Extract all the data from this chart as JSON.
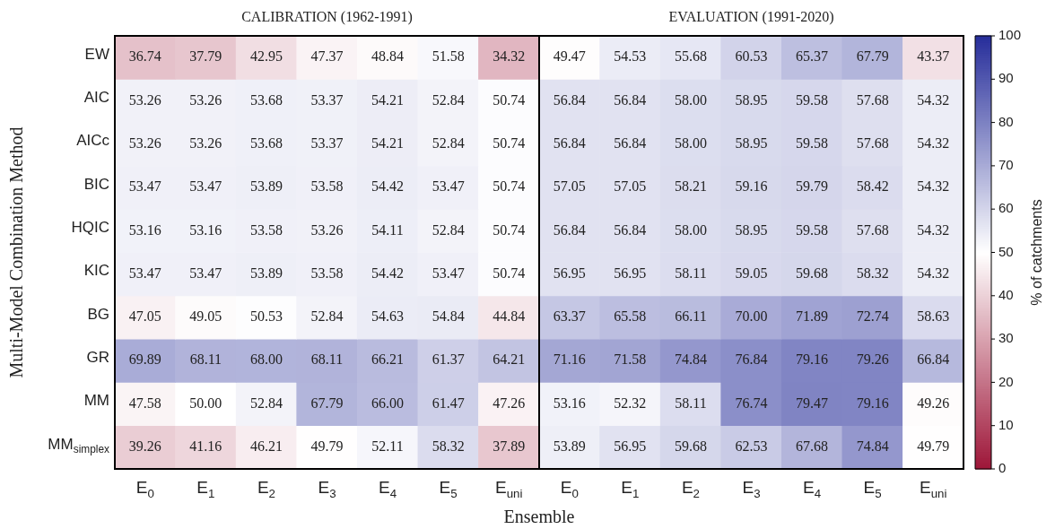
{
  "chart_data": {
    "type": "heatmap",
    "annotations": [
      "CALIBRATION (1962-1991)",
      "EVALUATION (1991-2020)"
    ],
    "xlabel": "Ensemble",
    "ylabel": "Multi-Model Combination Method",
    "clabel": "% of catchments",
    "categories": [
      "E$_{0}$",
      "E$_{1}$",
      "E$_{2}$",
      "E$_{3}$",
      "E$_{4}$",
      "E$_{5}$",
      "E$_{uni}$",
      "E$_{0}$",
      "E$_{1}$",
      "E$_{2}$",
      "E$_{3}$",
      "E$_{4}$",
      "E$_{5}$",
      "E$_{uni}$"
    ],
    "y_categories": [
      "EW",
      "AIC",
      "AICc",
      "BIC",
      "HQIC",
      "KIC",
      "BG",
      "GR",
      "MM",
      "MM$_{simplex}$"
    ],
    "cells": [
      [
        36.74,
        37.79,
        42.95,
        47.37,
        48.84,
        51.58,
        34.32,
        49.47,
        54.53,
        55.68,
        60.53,
        65.37,
        67.79,
        43.37
      ],
      [
        53.26,
        53.26,
        53.68,
        53.37,
        54.21,
        52.84,
        50.74,
        56.84,
        56.84,
        58.0,
        58.95,
        59.58,
        57.68,
        54.32
      ],
      [
        53.26,
        53.26,
        53.68,
        53.37,
        54.21,
        52.84,
        50.74,
        56.84,
        56.84,
        58.0,
        58.95,
        59.58,
        57.68,
        54.32
      ],
      [
        53.47,
        53.47,
        53.89,
        53.58,
        54.42,
        53.47,
        50.74,
        57.05,
        57.05,
        58.21,
        59.16,
        59.79,
        58.42,
        54.32
      ],
      [
        53.16,
        53.16,
        53.58,
        53.26,
        54.11,
        52.84,
        50.74,
        56.84,
        56.84,
        58.0,
        58.95,
        59.58,
        57.68,
        54.32
      ],
      [
        53.47,
        53.47,
        53.89,
        53.58,
        54.42,
        53.47,
        50.74,
        56.95,
        56.95,
        58.11,
        59.05,
        59.68,
        58.32,
        54.32
      ],
      [
        47.05,
        49.05,
        50.53,
        52.84,
        54.63,
        54.84,
        44.84,
        63.37,
        65.58,
        66.11,
        70.0,
        71.89,
        72.74,
        58.63
      ],
      [
        69.89,
        68.11,
        68.0,
        68.11,
        66.21,
        61.37,
        64.21,
        71.16,
        71.58,
        74.84,
        76.84,
        79.16,
        79.26,
        66.84
      ],
      [
        47.58,
        50.0,
        52.84,
        67.79,
        66.0,
        61.47,
        47.26,
        53.16,
        52.32,
        58.11,
        76.74,
        79.47,
        79.16,
        49.26
      ],
      [
        39.26,
        41.16,
        46.21,
        49.79,
        52.11,
        58.32,
        37.89,
        53.89,
        56.95,
        59.68,
        62.53,
        67.68,
        74.84,
        49.79
      ]
    ],
    "cell_labels": [
      [
        "36.74",
        "37.79",
        "42.95",
        "47.37",
        "48.84",
        "51.58",
        "34.32",
        "49.47",
        "54.53",
        "55.68",
        "60.53",
        "65.37",
        "67.79",
        "43.37"
      ],
      [
        "53.26",
        "53.26",
        "53.68",
        "53.37",
        "54.21",
        "52.84",
        "50.74",
        "56.84",
        "56.84",
        "58.00",
        "58.95",
        "59.58",
        "57.68",
        "54.32"
      ],
      [
        "53.26",
        "53.26",
        "53.68",
        "53.37",
        "54.21",
        "52.84",
        "50.74",
        "56.84",
        "56.84",
        "58.00",
        "58.95",
        "59.58",
        "57.68",
        "54.32"
      ],
      [
        "53.47",
        "53.47",
        "53.89",
        "53.58",
        "54.42",
        "53.47",
        "50.74",
        "57.05",
        "57.05",
        "58.21",
        "59.16",
        "59.79",
        "58.42",
        "54.32"
      ],
      [
        "53.16",
        "53.16",
        "53.58",
        "53.26",
        "54.11",
        "52.84",
        "50.74",
        "56.84",
        "56.84",
        "58.00",
        "58.95",
        "59.58",
        "57.68",
        "54.32"
      ],
      [
        "53.47",
        "53.47",
        "53.89",
        "53.58",
        "54.42",
        "53.47",
        "50.74",
        "56.95",
        "56.95",
        "58.11",
        "59.05",
        "59.68",
        "58.32",
        "54.32"
      ],
      [
        "47.05",
        "49.05",
        "50.53",
        "52.84",
        "54.63",
        "54.84",
        "44.84",
        "63.37",
        "65.58",
        "66.11",
        "70.00",
        "71.89",
        "72.74",
        "58.63"
      ],
      [
        "69.89",
        "68.11",
        "68.00",
        "68.11",
        "66.21",
        "61.37",
        "64.21",
        "71.16",
        "71.58",
        "74.84",
        "76.84",
        "79.16",
        "79.26",
        "66.84"
      ],
      [
        "47.58",
        "50.00",
        "52.84",
        "67.79",
        "66.00",
        "61.47",
        "47.26",
        "53.16",
        "52.32",
        "58.11",
        "76.74",
        "79.47",
        "79.16",
        "49.26"
      ],
      [
        "39.26",
        "41.16",
        "46.21",
        "49.79",
        "52.11",
        "58.32",
        "37.89",
        "53.89",
        "56.95",
        "59.68",
        "62.53",
        "67.68",
        "74.84",
        "49.79"
      ]
    ],
    "clim": [
      0,
      100
    ],
    "cticks": [
      0,
      10,
      20,
      30,
      40,
      50,
      60,
      70,
      80,
      90,
      100
    ]
  }
}
